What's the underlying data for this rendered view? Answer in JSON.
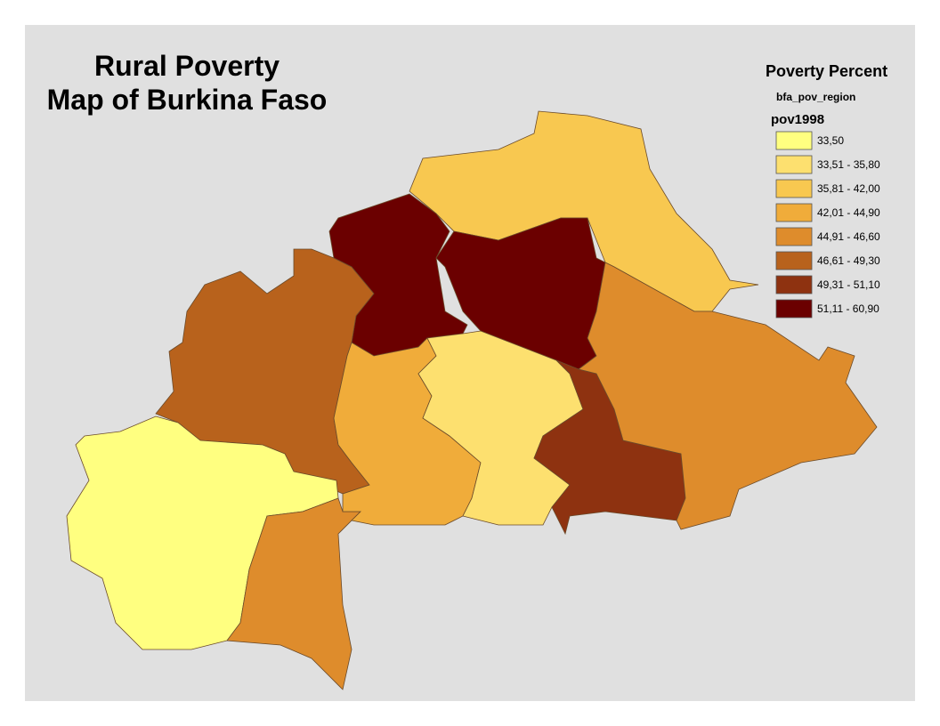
{
  "title": [
    "Rural Poverty",
    "Map of Burkina Faso"
  ],
  "legend": {
    "title": "Poverty Percent",
    "layer": "bfa_pov_region",
    "field": "pov1998",
    "classes": [
      {
        "label": "33,50",
        "color": "#ffff80"
      },
      {
        "label": "33,51 - 35,80",
        "color": "#fde06f"
      },
      {
        "label": "35,81 - 42,00",
        "color": "#f8c850"
      },
      {
        "label": "42,01 - 44,90",
        "color": "#f0ac3a"
      },
      {
        "label": "44,91 - 46,60",
        "color": "#de8c2c"
      },
      {
        "label": "46,61 - 49,30",
        "color": "#b8621c"
      },
      {
        "label": "49,31 - 51,10",
        "color": "#8e3210"
      },
      {
        "label": "51,11 - 60,90",
        "color": "#6b0000"
      }
    ]
  }
}
